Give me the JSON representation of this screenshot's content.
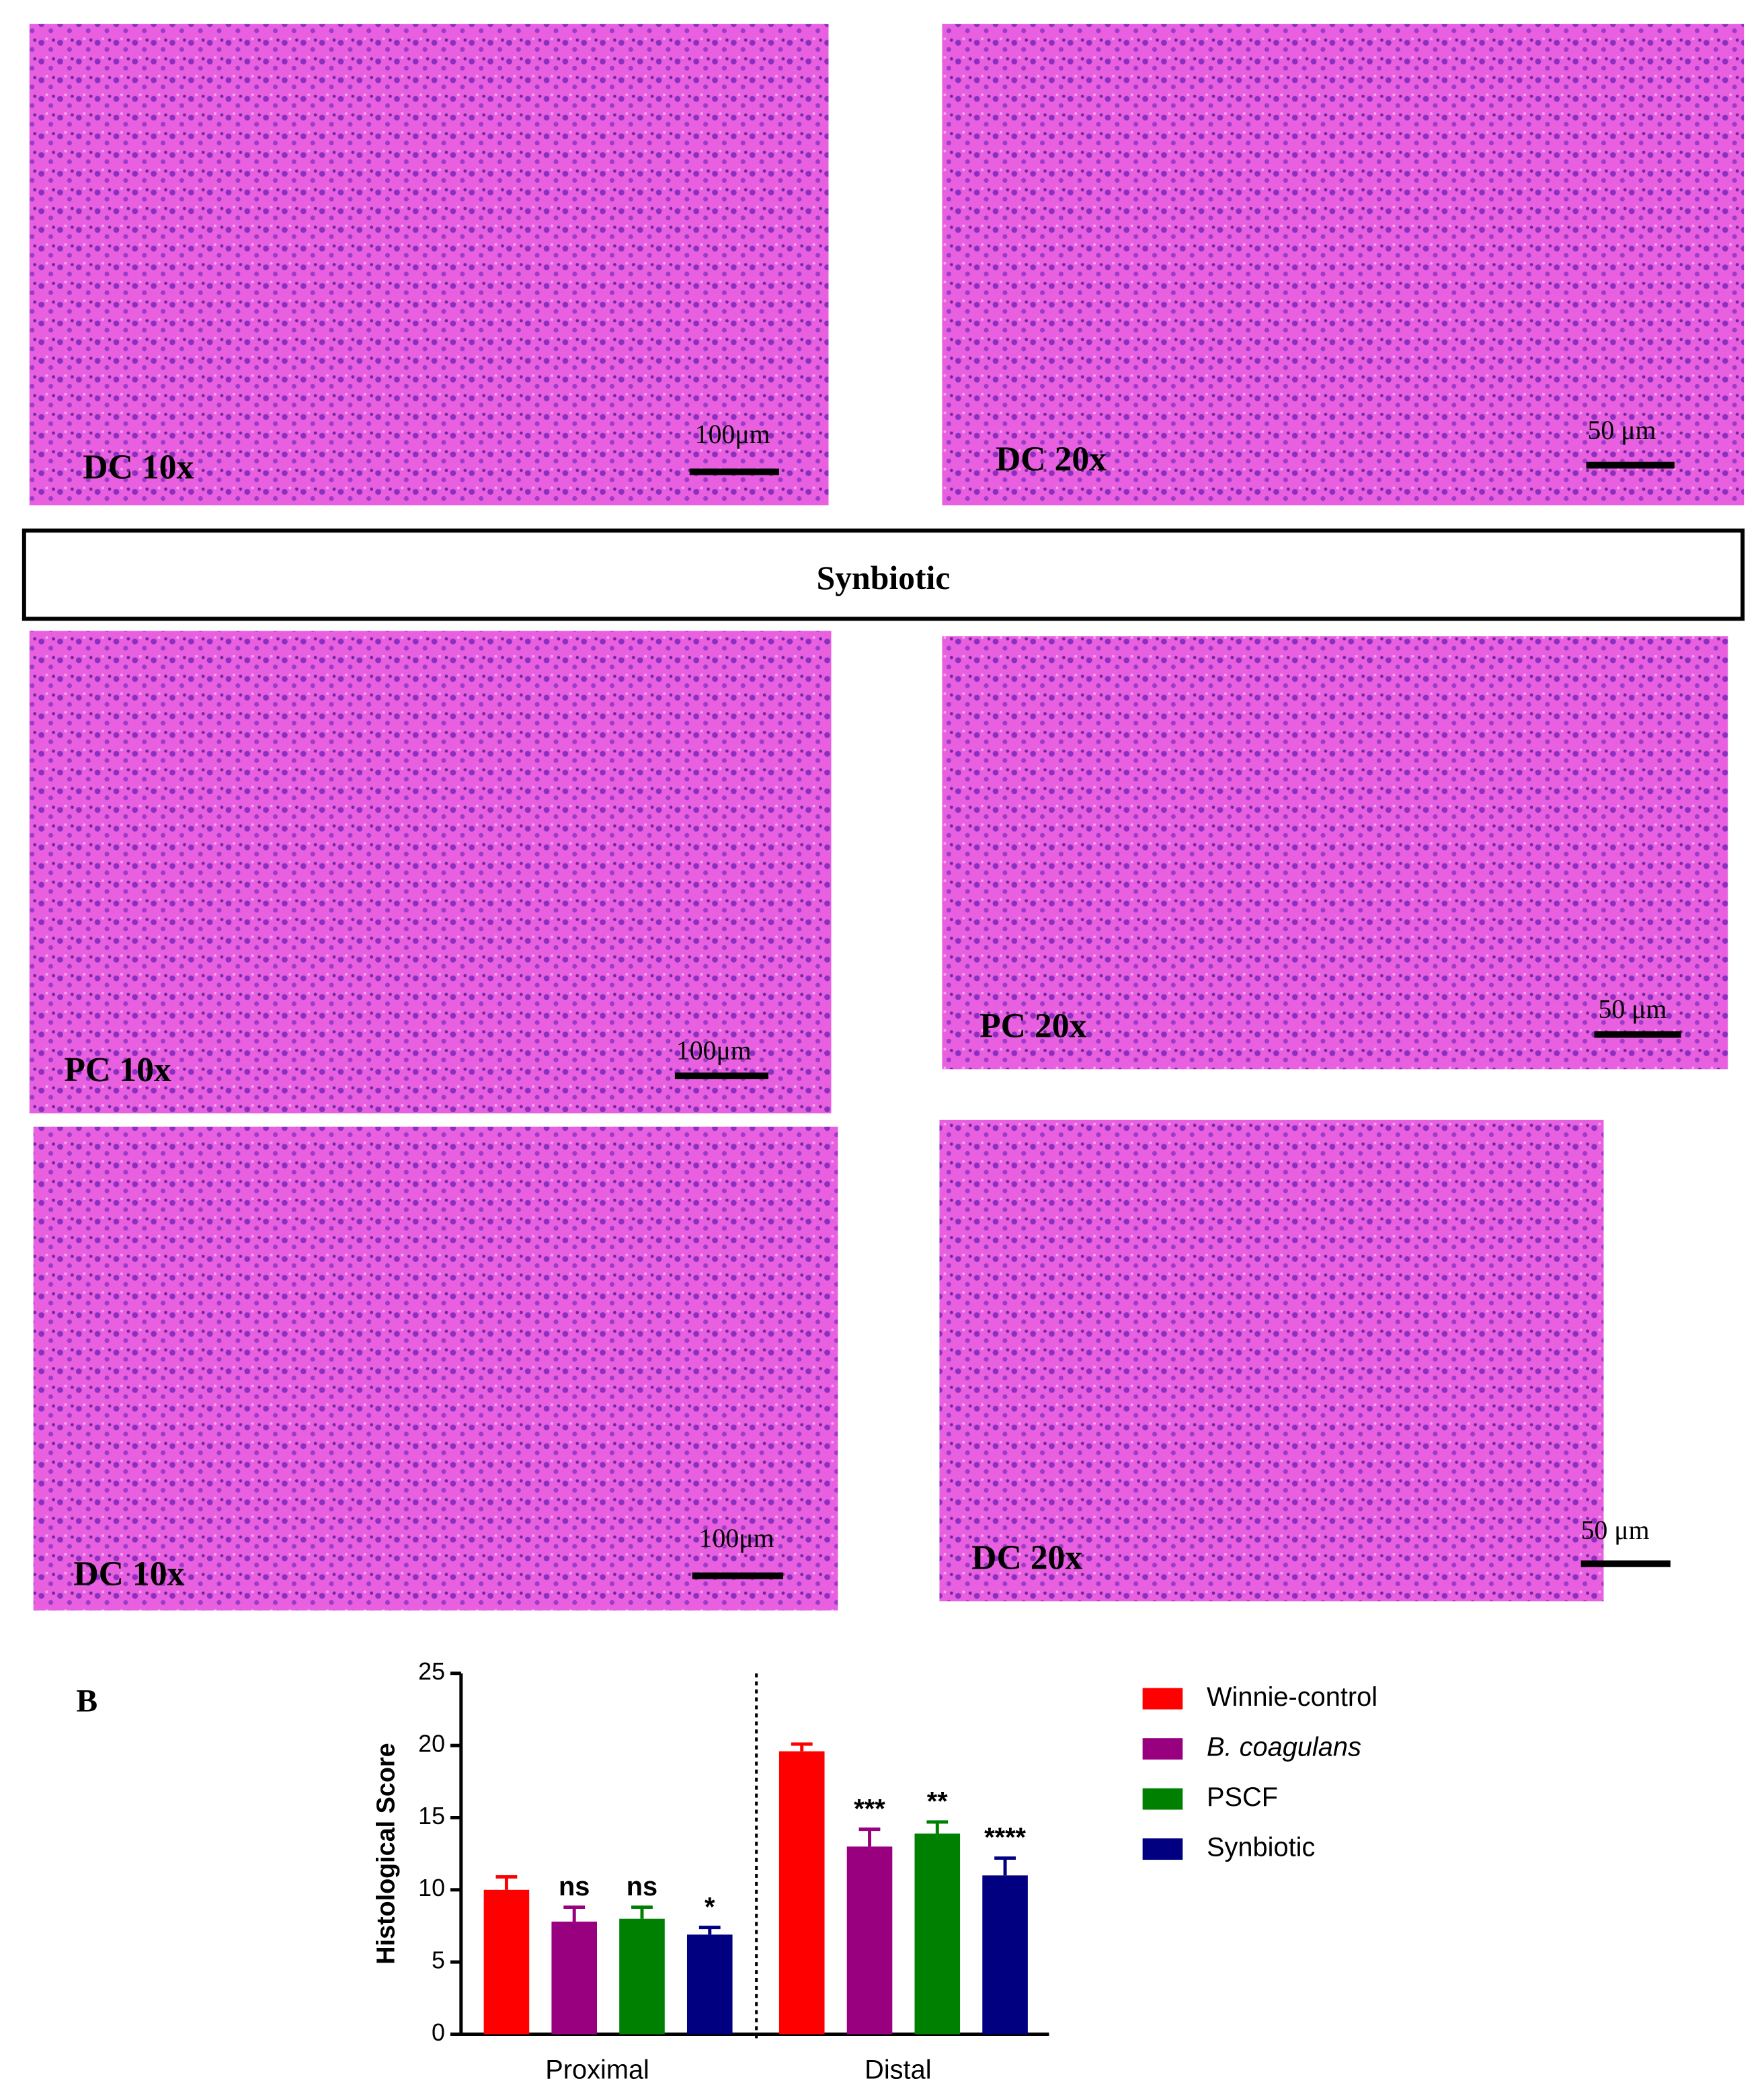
{
  "panels": [
    {
      "label": "DC 10x",
      "scale": "100μm"
    },
    {
      "label": "DC 20x",
      "scale": "50 μm"
    },
    {
      "label": "PC 10x",
      "scale": "100μm"
    },
    {
      "label": "PC 20x",
      "scale": "50 μm"
    },
    {
      "label": "DC 10x",
      "scale": "100μm"
    },
    {
      "label": "DC 20x",
      "scale": "50 μm"
    }
  ],
  "banner": "Synbiotic",
  "panel_letter": "B",
  "chart_data": {
    "type": "bar",
    "ylabel": "Histological Score",
    "categories": [
      "Proximal",
      "Distal"
    ],
    "series": [
      {
        "name": "Winnie-control",
        "color": "#ff0000",
        "values": [
          10,
          19.6
        ],
        "errors": [
          0.9,
          0.5
        ],
        "annotations": [
          null,
          null
        ]
      },
      {
        "name": "B. coagulans",
        "color": "#990080",
        "values": [
          7.8,
          13
        ],
        "errors": [
          1.0,
          1.2
        ],
        "annotations": [
          "ns",
          "***"
        ]
      },
      {
        "name": "PSCF",
        "color": "#008000",
        "values": [
          8,
          13.9
        ],
        "errors": [
          0.8,
          0.8
        ],
        "annotations": [
          "ns",
          "**"
        ]
      },
      {
        "name": "Synbiotic",
        "color": "#000080",
        "values": [
          6.9,
          11
        ],
        "errors": [
          0.5,
          1.2
        ],
        "annotations": [
          "*",
          "****"
        ]
      }
    ],
    "ylim": [
      0,
      25
    ],
    "yticks": [
      0,
      5,
      10,
      15,
      20,
      25
    ]
  }
}
